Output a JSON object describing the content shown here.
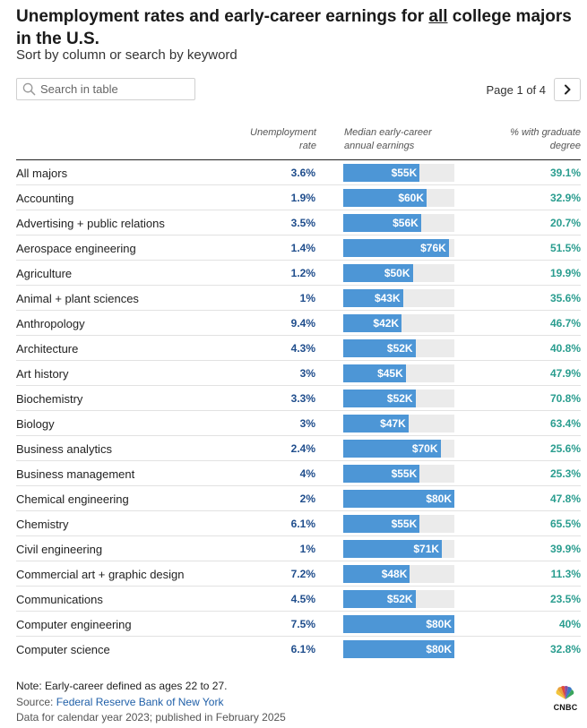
{
  "header": {
    "title_pre": "Unemployment rates and early-career earnings for ",
    "title_emph": "all",
    "title_post": " college majors in the U.S.",
    "subtitle": "Sort by column or search by keyword"
  },
  "search": {
    "placeholder": "Search in table"
  },
  "pager": {
    "label": "Page 1 of 4",
    "next_icon": "chevron-right-icon"
  },
  "columns": {
    "unemployment": [
      "Unemployment",
      "rate"
    ],
    "earnings": [
      "Median early-career",
      "annual earnings"
    ],
    "graduate": [
      "% with graduate",
      "degree"
    ]
  },
  "colors": {
    "bar": "#4d96d6",
    "bar_track": "#ebebeb",
    "unemployment_text": "#1f4d8c",
    "graduate_text": "#2a9d8f"
  },
  "earnings_scale_max": 80,
  "rows": [
    {
      "major": "All majors",
      "unemployment": "3.6%",
      "earnings": "$55K",
      "earnings_value": 55,
      "graduate": "39.1%"
    },
    {
      "major": "Accounting",
      "unemployment": "1.9%",
      "earnings": "$60K",
      "earnings_value": 60,
      "graduate": "32.9%"
    },
    {
      "major": "Advertising + public relations",
      "unemployment": "3.5%",
      "earnings": "$56K",
      "earnings_value": 56,
      "graduate": "20.7%"
    },
    {
      "major": "Aerospace engineering",
      "unemployment": "1.4%",
      "earnings": "$76K",
      "earnings_value": 76,
      "graduate": "51.5%"
    },
    {
      "major": "Agriculture",
      "unemployment": "1.2%",
      "earnings": "$50K",
      "earnings_value": 50,
      "graduate": "19.9%"
    },
    {
      "major": "Animal + plant sciences",
      "unemployment": "1%",
      "earnings": "$43K",
      "earnings_value": 43,
      "graduate": "35.6%"
    },
    {
      "major": "Anthropology",
      "unemployment": "9.4%",
      "earnings": "$42K",
      "earnings_value": 42,
      "graduate": "46.7%"
    },
    {
      "major": "Architecture",
      "unemployment": "4.3%",
      "earnings": "$52K",
      "earnings_value": 52,
      "graduate": "40.8%"
    },
    {
      "major": "Art history",
      "unemployment": "3%",
      "earnings": "$45K",
      "earnings_value": 45,
      "graduate": "47.9%"
    },
    {
      "major": "Biochemistry",
      "unemployment": "3.3%",
      "earnings": "$52K",
      "earnings_value": 52,
      "graduate": "70.8%"
    },
    {
      "major": "Biology",
      "unemployment": "3%",
      "earnings": "$47K",
      "earnings_value": 47,
      "graduate": "63.4%"
    },
    {
      "major": "Business analytics",
      "unemployment": "2.4%",
      "earnings": "$70K",
      "earnings_value": 70,
      "graduate": "25.6%"
    },
    {
      "major": "Business management",
      "unemployment": "4%",
      "earnings": "$55K",
      "earnings_value": 55,
      "graduate": "25.3%"
    },
    {
      "major": "Chemical engineering",
      "unemployment": "2%",
      "earnings": "$80K",
      "earnings_value": 80,
      "graduate": "47.8%"
    },
    {
      "major": "Chemistry",
      "unemployment": "6.1%",
      "earnings": "$55K",
      "earnings_value": 55,
      "graduate": "65.5%"
    },
    {
      "major": "Civil engineering",
      "unemployment": "1%",
      "earnings": "$71K",
      "earnings_value": 71,
      "graduate": "39.9%"
    },
    {
      "major": "Commercial art + graphic design",
      "unemployment": "7.2%",
      "earnings": "$48K",
      "earnings_value": 48,
      "graduate": "11.3%"
    },
    {
      "major": "Communications",
      "unemployment": "4.5%",
      "earnings": "$52K",
      "earnings_value": 52,
      "graduate": "23.5%"
    },
    {
      "major": "Computer engineering",
      "unemployment": "7.5%",
      "earnings": "$80K",
      "earnings_value": 80,
      "graduate": "40%"
    },
    {
      "major": "Computer science",
      "unemployment": "6.1%",
      "earnings": "$80K",
      "earnings_value": 80,
      "graduate": "32.8%"
    }
  ],
  "footer": {
    "note": "Note: Early-career defined as ages 22 to 27.",
    "source_label": "Source: ",
    "source_link": "Federal Reserve Bank of New York",
    "data_line": "Data for calendar year 2023; published in February 2025",
    "logo_text": "CNBC"
  }
}
